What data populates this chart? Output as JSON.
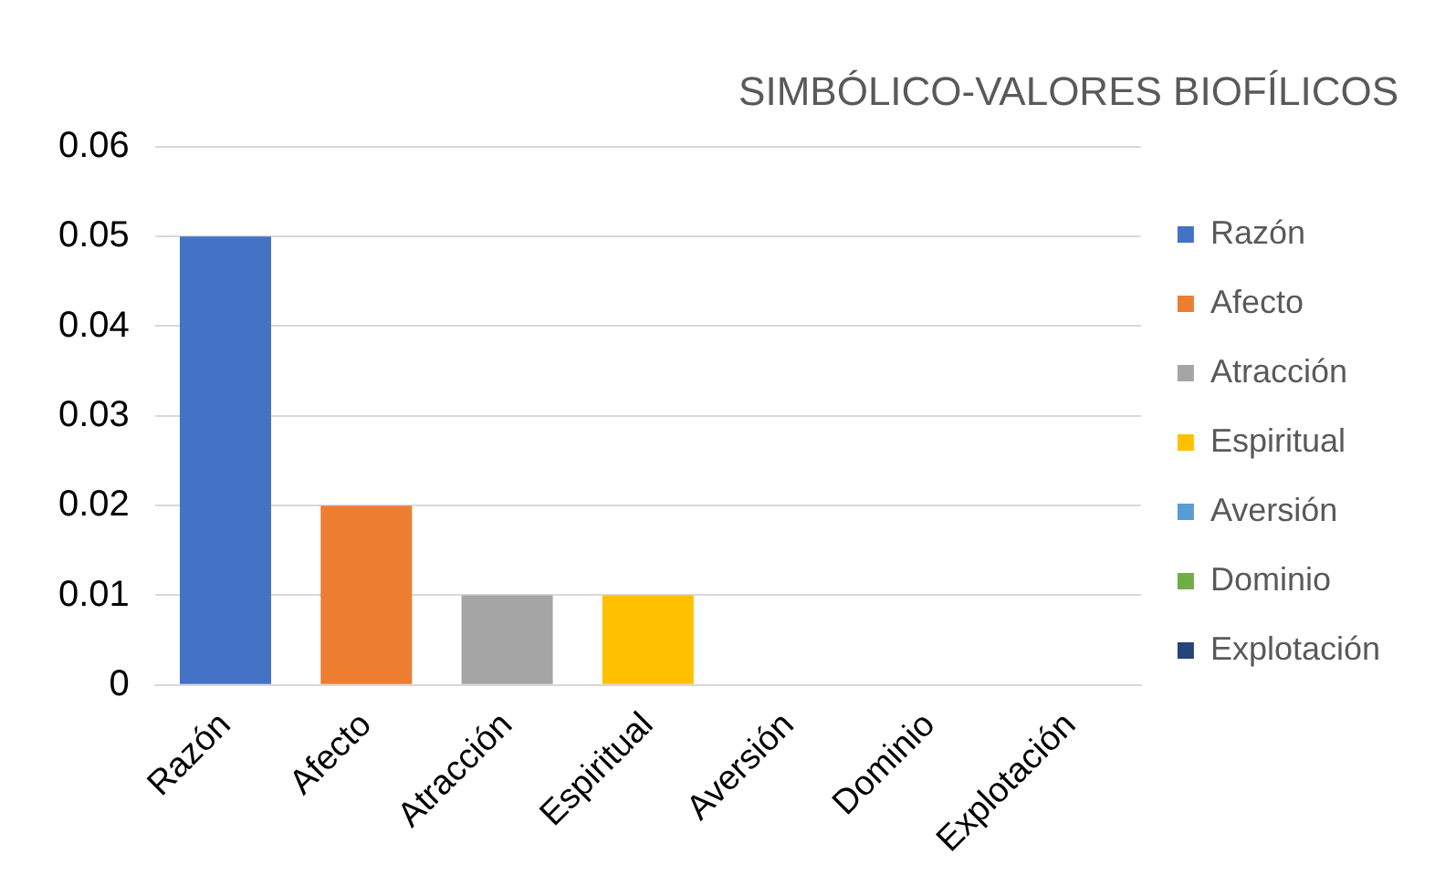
{
  "chart_data": {
    "type": "bar",
    "title": "SIMBÓLICO-VALORES BIOFÍLICOS",
    "categories": [
      "Razón",
      "Afecto",
      "Atracción",
      "Espiritual",
      "Aversión",
      "Dominio",
      "Explotación"
    ],
    "series": [
      {
        "name": "Razón",
        "color": "#4472c4",
        "values": [
          0.05,
          null,
          null,
          null,
          null,
          null,
          null
        ]
      },
      {
        "name": "Afecto",
        "color": "#ed7d31",
        "values": [
          null,
          0.02,
          null,
          null,
          null,
          null,
          null
        ]
      },
      {
        "name": "Atracción",
        "color": "#a5a5a5",
        "values": [
          null,
          null,
          0.01,
          null,
          null,
          null,
          null
        ]
      },
      {
        "name": "Espiritual",
        "color": "#ffc000",
        "values": [
          null,
          null,
          null,
          0.01,
          null,
          null,
          null
        ]
      },
      {
        "name": "Aversión",
        "color": "#5b9bd5",
        "values": [
          null,
          null,
          null,
          null,
          0,
          null,
          null
        ]
      },
      {
        "name": "Dominio",
        "color": "#70ad47",
        "values": [
          null,
          null,
          null,
          null,
          null,
          0,
          null
        ]
      },
      {
        "name": "Explotación",
        "color": "#264478",
        "values": [
          null,
          null,
          null,
          null,
          null,
          null,
          0
        ]
      }
    ],
    "ylim": [
      0,
      0.06
    ],
    "yticks": [
      0,
      0.01,
      0.02,
      0.03,
      0.04,
      0.05,
      0.06
    ],
    "grid": "y",
    "legend": "right"
  }
}
